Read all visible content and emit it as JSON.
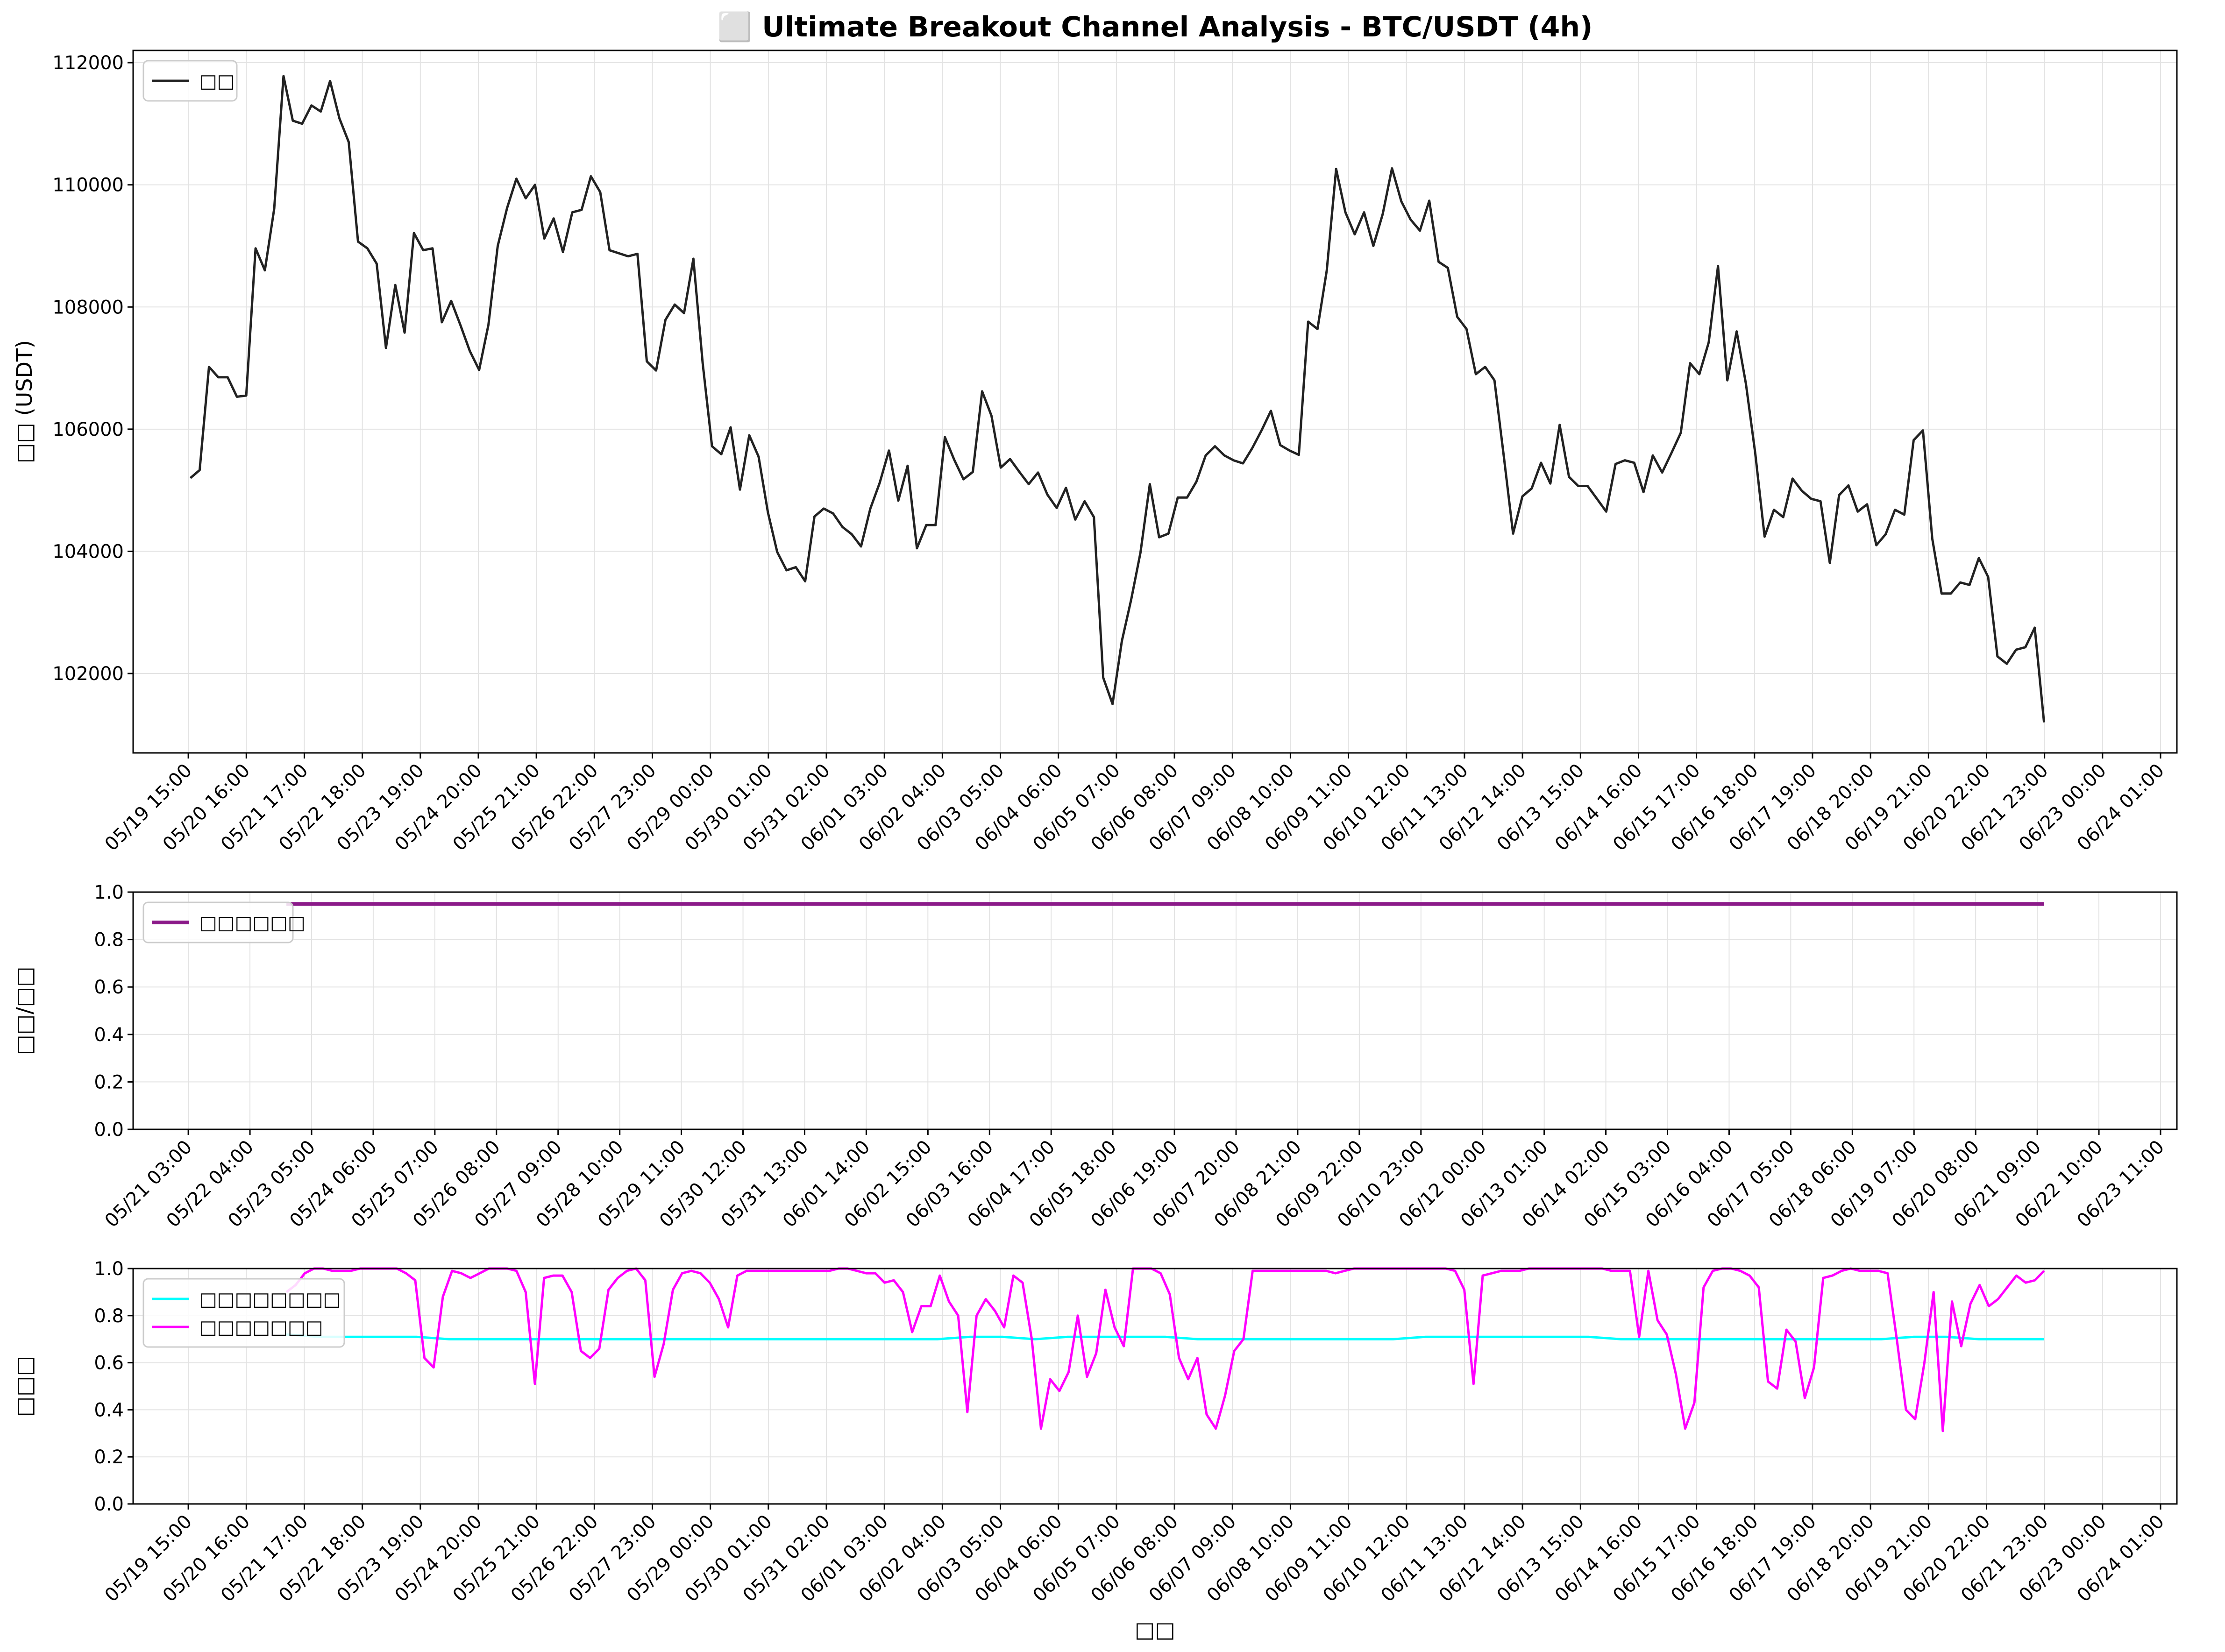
{
  "chart_data": [
    {
      "type": "line",
      "title": "⬜ Ultimate Breakout Channel Analysis - BTC/USDT (4h)",
      "xlabel": "",
      "ylabel": "□□ (USDT)",
      "ylim": [
        100700,
        112200
      ],
      "yticks": [
        102000,
        104000,
        106000,
        108000,
        110000,
        112000
      ],
      "xticks": [
        "05/19 15:00",
        "05/20 16:00",
        "05/21 17:00",
        "05/22 18:00",
        "05/23 19:00",
        "05/24 20:00",
        "05/25 21:00",
        "05/26 22:00",
        "05/27 23:00",
        "05/29 00:00",
        "05/30 01:00",
        "05/31 02:00",
        "06/01 03:00",
        "06/02 04:00",
        "06/03 05:00",
        "06/04 06:00",
        "06/05 07:00",
        "06/06 08:00",
        "06/07 09:00",
        "06/08 10:00",
        "06/09 11:00",
        "06/10 12:00",
        "06/11 13:00",
        "06/12 14:00",
        "06/13 15:00",
        "06/14 16:00",
        "06/15 17:00",
        "06/16 18:00",
        "06/17 19:00",
        "06/18 20:00",
        "06/19 21:00",
        "06/20 22:00",
        "06/21 23:00",
        "06/23 00:00",
        "06/24 01:00"
      ],
      "legend_position": "upper-left",
      "grid": true,
      "series": [
        {
          "name": "□□",
          "color": "#222222",
          "values": [
            105200,
            105330,
            107020,
            106850,
            106850,
            106530,
            106550,
            108960,
            108600,
            109610,
            111780,
            111050,
            111000,
            111300,
            111200,
            111700,
            111090,
            110700,
            109070,
            108960,
            108710,
            107330,
            108360,
            107580,
            109210,
            108930,
            108960,
            107750,
            108100,
            107700,
            107280,
            106970,
            107710,
            109000,
            109620,
            110100,
            109780,
            110000,
            109120,
            109450,
            108900,
            109550,
            109590,
            110140,
            109880,
            108930,
            108880,
            108830,
            108870,
            107110,
            106960,
            107790,
            108040,
            107900,
            108790,
            107080,
            105720,
            105590,
            106030,
            105010,
            105900,
            105550,
            104640,
            103990,
            103690,
            103740,
            103510,
            104570,
            104700,
            104620,
            104400,
            104280,
            104080,
            104700,
            105120,
            105650,
            104830,
            105400,
            104050,
            104430,
            104430,
            105870,
            105500,
            105180,
            105300,
            106620,
            106220,
            105370,
            105510,
            105300,
            105100,
            105290,
            104930,
            104710,
            105040,
            104520,
            104820,
            104560,
            101930,
            101500,
            102530,
            103210,
            103980,
            105100,
            104230,
            104290,
            104880,
            104880,
            105140,
            105570,
            105720,
            105570,
            105490,
            105440,
            105690,
            105980,
            106300,
            105740,
            105650,
            105580,
            107760,
            107640,
            108600,
            110260,
            109550,
            109190,
            109550,
            109000,
            109520,
            110270,
            109730,
            109430,
            109250,
            109740,
            108740,
            108640,
            107840,
            107640,
            106900,
            107020,
            106800,
            105560,
            104290,
            104900,
            105030,
            105450,
            105110,
            106070,
            105220,
            105070,
            105070,
            104860,
            104650,
            105430,
            105490,
            105450,
            104970,
            105570,
            105290,
            105610,
            105940,
            107080,
            106900,
            107420,
            108670,
            106800,
            107600,
            106740,
            105600,
            104240,
            104680,
            104560,
            105190,
            104990,
            104860,
            104820,
            103810,
            104920,
            105080,
            104650,
            104770,
            104100,
            104280,
            104680,
            104600,
            105820,
            105980,
            104210,
            103310,
            103310,
            103490,
            103450,
            103890,
            103580,
            102280,
            102160,
            102390,
            102430,
            102750,
            101200
          ]
        }
      ]
    },
    {
      "type": "line",
      "title": "",
      "xlabel": "",
      "ylabel": "□□/□□",
      "ylim": [
        0.0,
        1.0
      ],
      "yticks": [
        0.0,
        0.2,
        0.4,
        0.6,
        0.8,
        1.0
      ],
      "xticks": [
        "05/21 03:00",
        "05/22 04:00",
        "05/23 05:00",
        "05/24 06:00",
        "05/25 07:00",
        "05/26 08:00",
        "05/27 09:00",
        "05/28 10:00",
        "05/29 11:00",
        "05/30 12:00",
        "05/31 13:00",
        "06/01 14:00",
        "06/02 15:00",
        "06/03 16:00",
        "06/04 17:00",
        "06/05 18:00",
        "06/06 19:00",
        "06/07 20:00",
        "06/08 21:00",
        "06/09 22:00",
        "06/10 23:00",
        "06/12 00:00",
        "06/13 01:00",
        "06/14 02:00",
        "06/15 03:00",
        "06/16 04:00",
        "06/17 05:00",
        "06/18 06:00",
        "06/19 07:00",
        "06/20 08:00",
        "06/21 09:00",
        "06/22 10:00",
        "06/23 11:00"
      ],
      "legend_position": "upper-left",
      "grid": true,
      "series": [
        {
          "name": "□□□□□□",
          "color": "#8b1a89",
          "x_range": [
            "05/21 03:00",
            "06/22 10:00"
          ],
          "values": [
            0.95,
            0.95
          ]
        }
      ]
    },
    {
      "type": "line",
      "title": "",
      "xlabel": "□□",
      "ylabel": "□□□",
      "ylim": [
        0.0,
        1.0
      ],
      "yticks": [
        0.0,
        0.2,
        0.4,
        0.6,
        0.8,
        1.0
      ],
      "xticks": [
        "05/19 15:00",
        "05/20 16:00",
        "05/21 17:00",
        "05/22 18:00",
        "05/23 19:00",
        "05/24 20:00",
        "05/25 21:00",
        "05/26 22:00",
        "05/27 23:00",
        "05/29 00:00",
        "05/30 01:00",
        "05/31 02:00",
        "06/01 03:00",
        "06/02 04:00",
        "06/03 05:00",
        "06/04 06:00",
        "06/05 07:00",
        "06/06 08:00",
        "06/07 09:00",
        "06/08 10:00",
        "06/09 11:00",
        "06/10 12:00",
        "06/11 13:00",
        "06/12 14:00",
        "06/13 15:00",
        "06/14 16:00",
        "06/15 17:00",
        "06/16 18:00",
        "06/17 19:00",
        "06/18 20:00",
        "06/19 21:00",
        "06/20 22:00",
        "06/21 23:00",
        "06/23 00:00",
        "06/24 01:00"
      ],
      "legend_position": "upper-left",
      "grid": true,
      "series": [
        {
          "name": "□□□□□□□□",
          "color": "#00ffff",
          "values": [
            0.72,
            0.71,
            0.71,
            0.71,
            0.71,
            0.7,
            0.7,
            0.7,
            0.7,
            0.7,
            0.7,
            0.7,
            0.7,
            0.7,
            0.7,
            0.7,
            0.7,
            0.7,
            0.7,
            0.7,
            0.7,
            0.71,
            0.71,
            0.7,
            0.71,
            0.71,
            0.71,
            0.71,
            0.7,
            0.7,
            0.7,
            0.7,
            0.7,
            0.7,
            0.7,
            0.71,
            0.71,
            0.71,
            0.71,
            0.71,
            0.71,
            0.7,
            0.7,
            0.7,
            0.7,
            0.7,
            0.7,
            0.7,
            0.7,
            0.7,
            0.71,
            0.71,
            0.7,
            0.7,
            0.7
          ]
        },
        {
          "name": "□□□□□□□",
          "color": "#ff00ff",
          "values": [
            0.9,
            0.93,
            0.98,
            1.0,
            1.0,
            0.99,
            0.99,
            0.99,
            1.0,
            1.0,
            1.0,
            1.0,
            1.0,
            0.98,
            0.95,
            0.62,
            0.58,
            0.88,
            0.99,
            0.98,
            0.96,
            0.98,
            1.0,
            1.0,
            1.0,
            0.99,
            0.9,
            0.51,
            0.96,
            0.97,
            0.97,
            0.9,
            0.65,
            0.62,
            0.66,
            0.91,
            0.96,
            0.99,
            1.0,
            0.95,
            0.54,
            0.68,
            0.91,
            0.98,
            0.99,
            0.98,
            0.94,
            0.87,
            0.75,
            0.97,
            0.99,
            0.99,
            0.99,
            0.99,
            0.99,
            0.99,
            0.99,
            0.99,
            0.99,
            0.99,
            1.0,
            1.0,
            0.99,
            0.98,
            0.98,
            0.94,
            0.95,
            0.9,
            0.73,
            0.84,
            0.84,
            0.97,
            0.86,
            0.8,
            0.39,
            0.8,
            0.87,
            0.82,
            0.75,
            0.97,
            0.94,
            0.7,
            0.32,
            0.53,
            0.48,
            0.56,
            0.8,
            0.54,
            0.64,
            0.91,
            0.75,
            0.67,
            1.0,
            1.0,
            1.0,
            0.98,
            0.89,
            0.62,
            0.53,
            0.62,
            0.38,
            0.32,
            0.46,
            0.65,
            0.7,
            0.99,
            0.99,
            0.99,
            0.99,
            0.99,
            0.99,
            0.99,
            0.99,
            0.99,
            0.98,
            0.99,
            1.0,
            1.0,
            1.0,
            1.0,
            1.0,
            1.0,
            1.0,
            1.0,
            1.0,
            1.0,
            1.0,
            0.99,
            0.91,
            0.51,
            0.97,
            0.98,
            0.99,
            0.99,
            0.99,
            1.0,
            1.0,
            1.0,
            1.0,
            1.0,
            1.0,
            1.0,
            1.0,
            1.0,
            0.99,
            0.99,
            0.99,
            0.71,
            0.99,
            0.78,
            0.72,
            0.55,
            0.32,
            0.43,
            0.92,
            0.99,
            1.0,
            1.0,
            0.99,
            0.97,
            0.92,
            0.52,
            0.49,
            0.74,
            0.69,
            0.45,
            0.58,
            0.96,
            0.97,
            0.99,
            1.0,
            0.99,
            0.99,
            0.99,
            0.98,
            0.7,
            0.4,
            0.36,
            0.6,
            0.9,
            0.31,
            0.86,
            0.67,
            0.85,
            0.93,
            0.84,
            0.87,
            0.92,
            0.97,
            0.94,
            0.95,
            0.99
          ]
        }
      ]
    }
  ]
}
